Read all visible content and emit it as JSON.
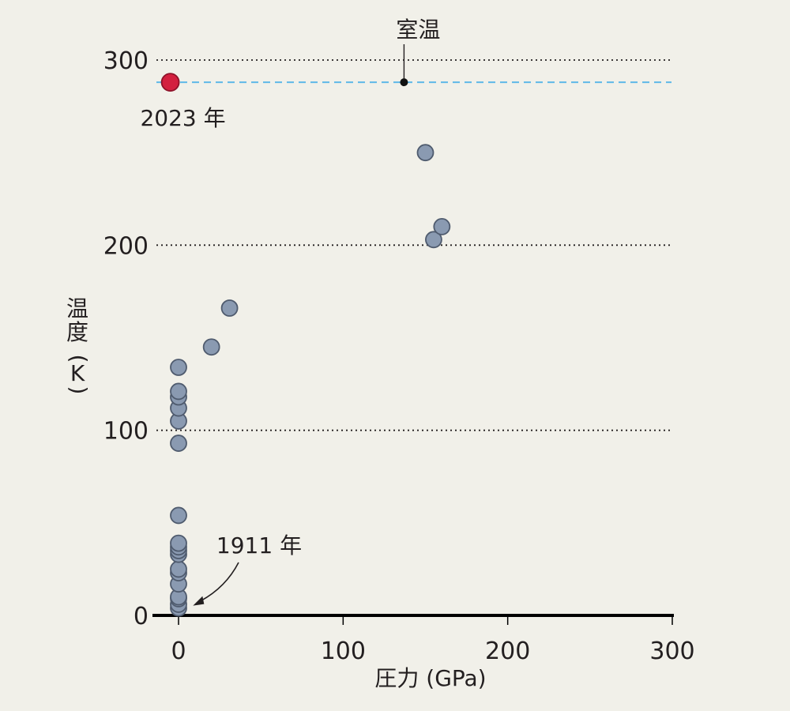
{
  "chart_data": {
    "type": "scatter",
    "title": "",
    "xlabel": "圧力 (GPa)",
    "ylabel_chars": [
      "温",
      "度",
      "(",
      "K",
      ")"
    ],
    "xlim": [
      0,
      300
    ],
    "ylim": [
      0,
      300
    ],
    "x_ticks": [
      "0",
      "100",
      "200",
      "300"
    ],
    "y_ticks": [
      "0",
      "100",
      "200",
      "300"
    ],
    "grid": "dotted horizontal lines at 100, 200, 300",
    "colors": {
      "point": "#8a9ab1",
      "point_stroke": "#4f5b6e",
      "highlight": "#d3203f",
      "highlight_stroke": "#8d1229",
      "room_temp_line": "#5fb8e8",
      "axis": "#000000"
    },
    "series": [
      {
        "points": [
          [
            0,
            4
          ],
          [
            0,
            6
          ],
          [
            0,
            9
          ],
          [
            0,
            10
          ],
          [
            0,
            17
          ],
          [
            0,
            23
          ],
          [
            0,
            25
          ],
          [
            0,
            33
          ],
          [
            0,
            35
          ],
          [
            0,
            37
          ],
          [
            0,
            39
          ],
          [
            0,
            54
          ],
          [
            0,
            93
          ],
          [
            0,
            105
          ],
          [
            0,
            112
          ],
          [
            0,
            118
          ],
          [
            0,
            121
          ],
          [
            0,
            134
          ],
          [
            20,
            145
          ],
          [
            31,
            166
          ],
          [
            150,
            250
          ],
          [
            155,
            203
          ],
          [
            160,
            210
          ]
        ]
      }
    ],
    "highlight_point": {
      "x": -5,
      "y": 288,
      "label": "2023 年"
    },
    "room_temperature": {
      "y": 288,
      "label": "室温",
      "marker_x": 137
    },
    "annotations": [
      {
        "label": "1911 年",
        "target": [
          4,
          4
        ]
      }
    ]
  }
}
